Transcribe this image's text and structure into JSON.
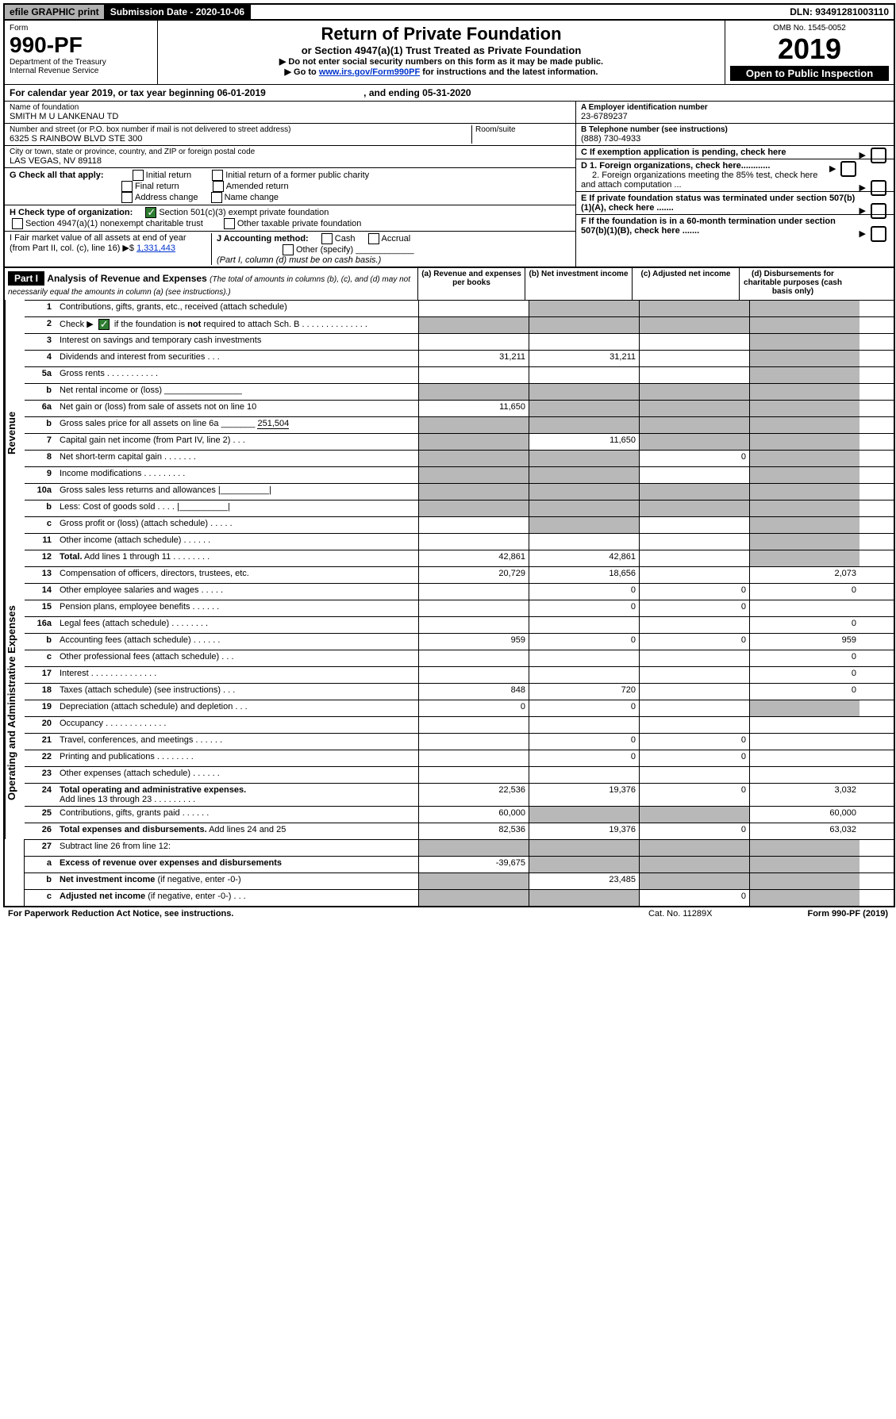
{
  "topbar": {
    "efile": "efile GRAPHIC print",
    "subdate_label": "Submission Date - 2020-10-06",
    "dln": "DLN: 93491281003110"
  },
  "header": {
    "form_word": "Form",
    "form_num": "990-PF",
    "dept": "Department of the Treasury",
    "irs": "Internal Revenue Service",
    "title": "Return of Private Foundation",
    "subtitle": "or Section 4947(a)(1) Trust Treated as Private Foundation",
    "instr1": "▶ Do not enter social security numbers on this form as it may be made public.",
    "instr2_a": "▶ Go to ",
    "instr2_link": "www.irs.gov/Form990PF",
    "instr2_b": " for instructions and the latest information.",
    "omb": "OMB No. 1545-0052",
    "year": "2019",
    "open": "Open to Public Inspection"
  },
  "cal": {
    "text_a": "For calendar year 2019, or tax year beginning 06-01-2019",
    "text_b": ", and ending 05-31-2020"
  },
  "id": {
    "name_label": "Name of foundation",
    "name": "SMITH M U LANKENAU TD",
    "addr_label": "Number and street (or P.O. box number if mail is not delivered to street address)",
    "room_label": "Room/suite",
    "addr": "6325 S RAINBOW BLVD STE 300",
    "city_label": "City or town, state or province, country, and ZIP or foreign postal code",
    "city": "LAS VEGAS, NV  89118",
    "ein_label": "A Employer identification number",
    "ein": "23-6789237",
    "tel_label": "B Telephone number (see instructions)",
    "tel": "(888) 730-4933",
    "c_label": "C If exemption application is pending, check here",
    "d1": "D 1. Foreign organizations, check here............",
    "d2": "2. Foreign organizations meeting the 85% test, check here and attach computation ...",
    "e_label": "E  If private foundation status was terminated under section 507(b)(1)(A), check here .......",
    "f_label": "F  If the foundation is in a 60-month termination under section 507(b)(1)(B), check here ......."
  },
  "g": {
    "label": "G Check all that apply:",
    "opts": [
      "Initial return",
      "Initial return of a former public charity",
      "Final return",
      "Amended return",
      "Address change",
      "Name change"
    ]
  },
  "h": {
    "label": "H Check type of organization:",
    "opt1": "Section 501(c)(3) exempt private foundation",
    "opt2": "Section 4947(a)(1) nonexempt charitable trust",
    "opt3": "Other taxable private foundation"
  },
  "i": {
    "label": "I Fair market value of all assets at end of year (from Part II, col. (c), line 16) ▶$ ",
    "value": "1,331,443"
  },
  "j": {
    "label": "J Accounting method:",
    "cash": "Cash",
    "accrual": "Accrual",
    "other": "Other (specify)",
    "note": "(Part I, column (d) must be on cash basis.)"
  },
  "part1": {
    "hdr": "Part I",
    "title": "Analysis of Revenue and Expenses",
    "note": "(The total of amounts in columns (b), (c), and (d) may not necessarily equal the amounts in column (a) (see instructions).)",
    "col_a": "(a)  Revenue and expenses per books",
    "col_b": "(b)  Net investment income",
    "col_c": "(c)  Adjusted net income",
    "col_d": "(d)  Disbursements for charitable purposes (cash basis only)"
  },
  "sections": {
    "revenue": "Revenue",
    "expenses": "Operating and Administrative Expenses"
  },
  "rows": [
    {
      "n": "1",
      "d": "s",
      "a": "",
      "b": "s",
      "c": "s"
    },
    {
      "n": "2",
      "d": "s",
      "a": "s",
      "b": "s",
      "c": "s",
      "dots": 1
    },
    {
      "n": "3",
      "d": "s",
      "a": "",
      "b": "",
      "c": ""
    },
    {
      "n": "4",
      "d": "s",
      "a": "31,211",
      "b": "31,211",
      "c": "",
      "dots": 1
    },
    {
      "n": "5a",
      "d": "s",
      "a": "",
      "b": "",
      "c": "",
      "dots": 1
    },
    {
      "n": "b",
      "d": "s",
      "a": "s",
      "b": "s",
      "c": "s"
    },
    {
      "n": "6a",
      "d": "s",
      "a": "11,650",
      "b": "s",
      "c": "s"
    },
    {
      "n": "b",
      "d": "s",
      "a": "s",
      "b": "s",
      "c": "s"
    },
    {
      "n": "7",
      "d": "s",
      "a": "s",
      "b": "11,650",
      "c": "s",
      "dots": 1
    },
    {
      "n": "8",
      "d": "s",
      "a": "s",
      "b": "s",
      "c": "0",
      "dots": 1
    },
    {
      "n": "9",
      "d": "s",
      "a": "s",
      "b": "s",
      "c": "",
      "dots": 1
    },
    {
      "n": "10a",
      "d": "s",
      "a": "s",
      "b": "s",
      "c": "s"
    },
    {
      "n": "b",
      "d": "s",
      "a": "s",
      "b": "s",
      "c": "s"
    },
    {
      "n": "c",
      "d": "s",
      "a": "",
      "b": "s",
      "c": "",
      "dots": 1
    },
    {
      "n": "11",
      "d": "s",
      "a": "",
      "b": "",
      "c": "",
      "dots": 1
    },
    {
      "n": "12",
      "d": "s",
      "a": "42,861",
      "b": "42,861",
      "c": "",
      "dots": 1
    }
  ],
  "exp_rows": [
    {
      "n": "13",
      "d": "2,073",
      "a": "20,729",
      "b": "18,656",
      "c": ""
    },
    {
      "n": "14",
      "d": "0",
      "a": "",
      "b": "0",
      "c": "0",
      "dots": 1
    },
    {
      "n": "15",
      "d": "",
      "a": "",
      "b": "0",
      "c": "0",
      "dots": 1
    },
    {
      "n": "16a",
      "d": "0",
      "a": "",
      "b": "",
      "c": "",
      "dots": 1
    },
    {
      "n": "b",
      "d": "959",
      "a": "959",
      "b": "0",
      "c": "0",
      "dots": 1
    },
    {
      "n": "c",
      "d": "0",
      "a": "",
      "b": "",
      "c": "",
      "dots": 1
    },
    {
      "n": "17",
      "d": "0",
      "a": "",
      "b": "",
      "c": "",
      "dots": 1
    },
    {
      "n": "18",
      "d": "0",
      "a": "848",
      "b": "720",
      "c": "",
      "dots": 1
    },
    {
      "n": "19",
      "d": "s",
      "a": "0",
      "b": "0",
      "c": "",
      "dots": 1
    },
    {
      "n": "20",
      "d": "",
      "a": "",
      "b": "",
      "c": "",
      "dots": 1
    },
    {
      "n": "21",
      "d": "",
      "a": "",
      "b": "0",
      "c": "0",
      "dots": 1
    },
    {
      "n": "22",
      "d": "",
      "a": "",
      "b": "0",
      "c": "0",
      "dots": 1
    },
    {
      "n": "23",
      "d": "",
      "a": "",
      "b": "",
      "c": "",
      "dots": 1
    },
    {
      "n": "24",
      "d": "3,032",
      "a": "22,536",
      "b": "19,376",
      "c": "0",
      "dots": 1
    },
    {
      "n": "25",
      "d": "60,000",
      "a": "60,000",
      "b": "s",
      "c": "s",
      "dots": 1
    },
    {
      "n": "26",
      "d": "63,032",
      "a": "82,536",
      "b": "19,376",
      "c": "0"
    }
  ],
  "sub_rows": [
    {
      "n": "27",
      "d": "s",
      "a": "s",
      "b": "s",
      "c": "s"
    },
    {
      "n": "a",
      "d": "s",
      "a": "-39,675",
      "b": "s",
      "c": "s"
    },
    {
      "n": "b",
      "d": "s",
      "a": "s",
      "b": "23,485",
      "c": "s"
    },
    {
      "n": "c",
      "d": "s",
      "a": "s",
      "b": "s",
      "c": "0"
    }
  ],
  "footer": {
    "left": "For Paperwork Reduction Act Notice, see instructions.",
    "mid": "Cat. No. 11289X",
    "right": "Form 990-PF (2019)"
  }
}
